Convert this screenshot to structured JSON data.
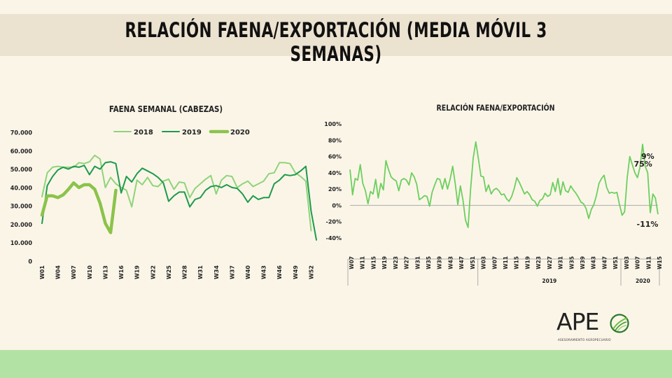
{
  "header": {
    "title": "RELACIÓN FAENA/EXPORTACIÓN (MEDIA MÓVIL 3 SEMANAS)"
  },
  "logo": {
    "text": "APE",
    "subtitle": "ASESORAMIENTO AGROPECUARIO"
  },
  "colors": {
    "background": "#fbf5e8",
    "header_bg": "#ece2d0",
    "footer_bg": "#b3e2a5",
    "s2018": "#8ed47a",
    "s2019": "#1e9a4c",
    "s2020": "#8bc34a",
    "ratio": "#6ccf5e",
    "zero": "#aaaaaa"
  },
  "chart_data": [
    {
      "type": "line",
      "title": "FAENA SEMANAL (CABEZAS)",
      "xlabel": "",
      "ylabel": "",
      "ylim": [
        0,
        70000
      ],
      "yticks": [
        0,
        10000,
        20000,
        30000,
        40000,
        50000,
        60000,
        70000
      ],
      "ytick_labels": [
        "0",
        "10.000",
        "20.000",
        "30.000",
        "40.000",
        "50.000",
        "60.000",
        "70.000"
      ],
      "x": [
        "W01",
        "W02",
        "W03",
        "W04",
        "W05",
        "W06",
        "W07",
        "W08",
        "W09",
        "W10",
        "W11",
        "W12",
        "W13",
        "W14",
        "W15",
        "W16",
        "W17",
        "W18",
        "W19",
        "W20",
        "W21",
        "W22",
        "W23",
        "W24",
        "W25",
        "W26",
        "W27",
        "W28",
        "W29",
        "W30",
        "W31",
        "W32",
        "W33",
        "W34",
        "W35",
        "W36",
        "W37",
        "W38",
        "W39",
        "W40",
        "W41",
        "W42",
        "W43",
        "W44",
        "W45",
        "W46",
        "W47",
        "W48",
        "W49",
        "W50",
        "W51",
        "W52",
        "W53"
      ],
      "xtick_labels": [
        "W01",
        "W04",
        "W07",
        "W10",
        "W13",
        "W16",
        "W19",
        "W22",
        "W25",
        "W28",
        "W31",
        "W34",
        "W37",
        "W40",
        "W43",
        "W46",
        "W49",
        "W52"
      ],
      "legend_position": "top",
      "series": [
        {
          "name": "2018",
          "values": [
            35000,
            48000,
            51000,
            51500,
            51000,
            51000,
            51000,
            53500,
            53000,
            54000,
            57500,
            55500,
            40000,
            45500,
            42000,
            40000,
            38500,
            29500,
            44000,
            41500,
            45500,
            41000,
            40500,
            43500,
            44500,
            39000,
            43000,
            42500,
            34500,
            39500,
            42000,
            44500,
            46500,
            36500,
            44000,
            46500,
            46000,
            40000,
            42000,
            43500,
            40500,
            42000,
            43500,
            47500,
            48000,
            53500,
            53500,
            53000,
            48000,
            46000,
            43500,
            16500,
            null
          ],
          "style": "thin"
        },
        {
          "name": "2019",
          "values": [
            20500,
            41000,
            46000,
            49500,
            51000,
            50000,
            51500,
            51000,
            52000,
            47000,
            51500,
            50000,
            53500,
            54000,
            53000,
            37000,
            46000,
            43000,
            47500,
            50500,
            49000,
            47500,
            45500,
            42500,
            32500,
            35500,
            37500,
            37500,
            29500,
            33500,
            34500,
            38500,
            40500,
            41000,
            40000,
            41500,
            40000,
            39500,
            36500,
            32000,
            35500,
            33500,
            34500,
            34500,
            42000,
            44000,
            47000,
            46500,
            47000,
            49000,
            51500,
            27000,
            11500
          ],
          "style": "medium"
        },
        {
          "name": "2020",
          "values": [
            25000,
            35500,
            35500,
            34500,
            36000,
            39000,
            42500,
            40000,
            41500,
            41500,
            39000,
            31500,
            20500,
            15500,
            38500,
            null,
            null,
            null,
            null,
            null,
            null,
            null,
            null,
            null,
            null,
            null,
            null,
            null,
            null,
            null,
            null,
            null,
            null,
            null,
            null,
            null,
            null,
            null,
            null,
            null,
            null,
            null,
            null,
            null,
            null,
            null,
            null,
            null,
            null,
            null,
            null,
            null,
            null
          ],
          "style": "thick"
        }
      ]
    },
    {
      "type": "line",
      "title": "RELACIÓN FAENA/EXPORTACIÓN",
      "xlabel": "",
      "ylabel": "",
      "ylim": [
        -40,
        100
      ],
      "yticks": [
        -40,
        -20,
        0,
        20,
        40,
        60,
        80,
        100
      ],
      "ytick_labels": [
        "-40%",
        "-20%",
        "0%",
        "20%",
        "40%",
        "60%",
        "80%",
        "100%"
      ],
      "xtick_labels": [
        "W07",
        "W11",
        "W15",
        "W19",
        "W23",
        "W27",
        "W31",
        "W35",
        "W39",
        "W43",
        "W47",
        "W51",
        "W03",
        "W07",
        "W11",
        "W15",
        "W19",
        "W23",
        "W27",
        "W31",
        "W35",
        "W39",
        "W43",
        "W47",
        "W51",
        "W03",
        "W07",
        "W11",
        "W15"
      ],
      "year_groups": [
        {
          "label": "",
          "from": 0,
          "to": 11
        },
        {
          "label": "2019",
          "from": 12,
          "to": 24
        },
        {
          "label": "2020",
          "from": 25,
          "to": 28
        }
      ],
      "annotations": [
        {
          "text": "75%",
          "index": 112
        },
        {
          "text": "9%",
          "index": 116
        },
        {
          "text": "-11%",
          "index": 117
        }
      ],
      "series": [
        {
          "name": "Relación",
          "values": [
            44,
            13,
            33,
            31,
            50,
            27,
            18,
            2,
            17,
            14,
            32,
            9,
            27,
            19,
            55,
            44,
            35,
            32,
            30,
            18,
            31,
            33,
            31,
            25,
            40,
            35,
            26,
            7,
            9,
            12,
            11,
            -1,
            16,
            25,
            33,
            32,
            20,
            33,
            20,
            32,
            48,
            27,
            1,
            24,
            7,
            -18,
            -27,
            20,
            58,
            78,
            58,
            36,
            35,
            17,
            25,
            14,
            19,
            21,
            18,
            13,
            14,
            8,
            5,
            11,
            21,
            34,
            28,
            21,
            14,
            17,
            13,
            7,
            5,
            -1,
            6,
            8,
            15,
            11,
            13,
            28,
            17,
            33,
            13,
            29,
            18,
            16,
            24,
            19,
            15,
            10,
            4,
            2,
            -4,
            -16,
            -5,
            1,
            12,
            27,
            33,
            37,
            22,
            15,
            16,
            15,
            16,
            1,
            -12,
            -8,
            34,
            60,
            50,
            40,
            34,
            47,
            75,
            48,
            40,
            -9,
            14,
            9,
            -11
          ]
        }
      ]
    }
  ]
}
